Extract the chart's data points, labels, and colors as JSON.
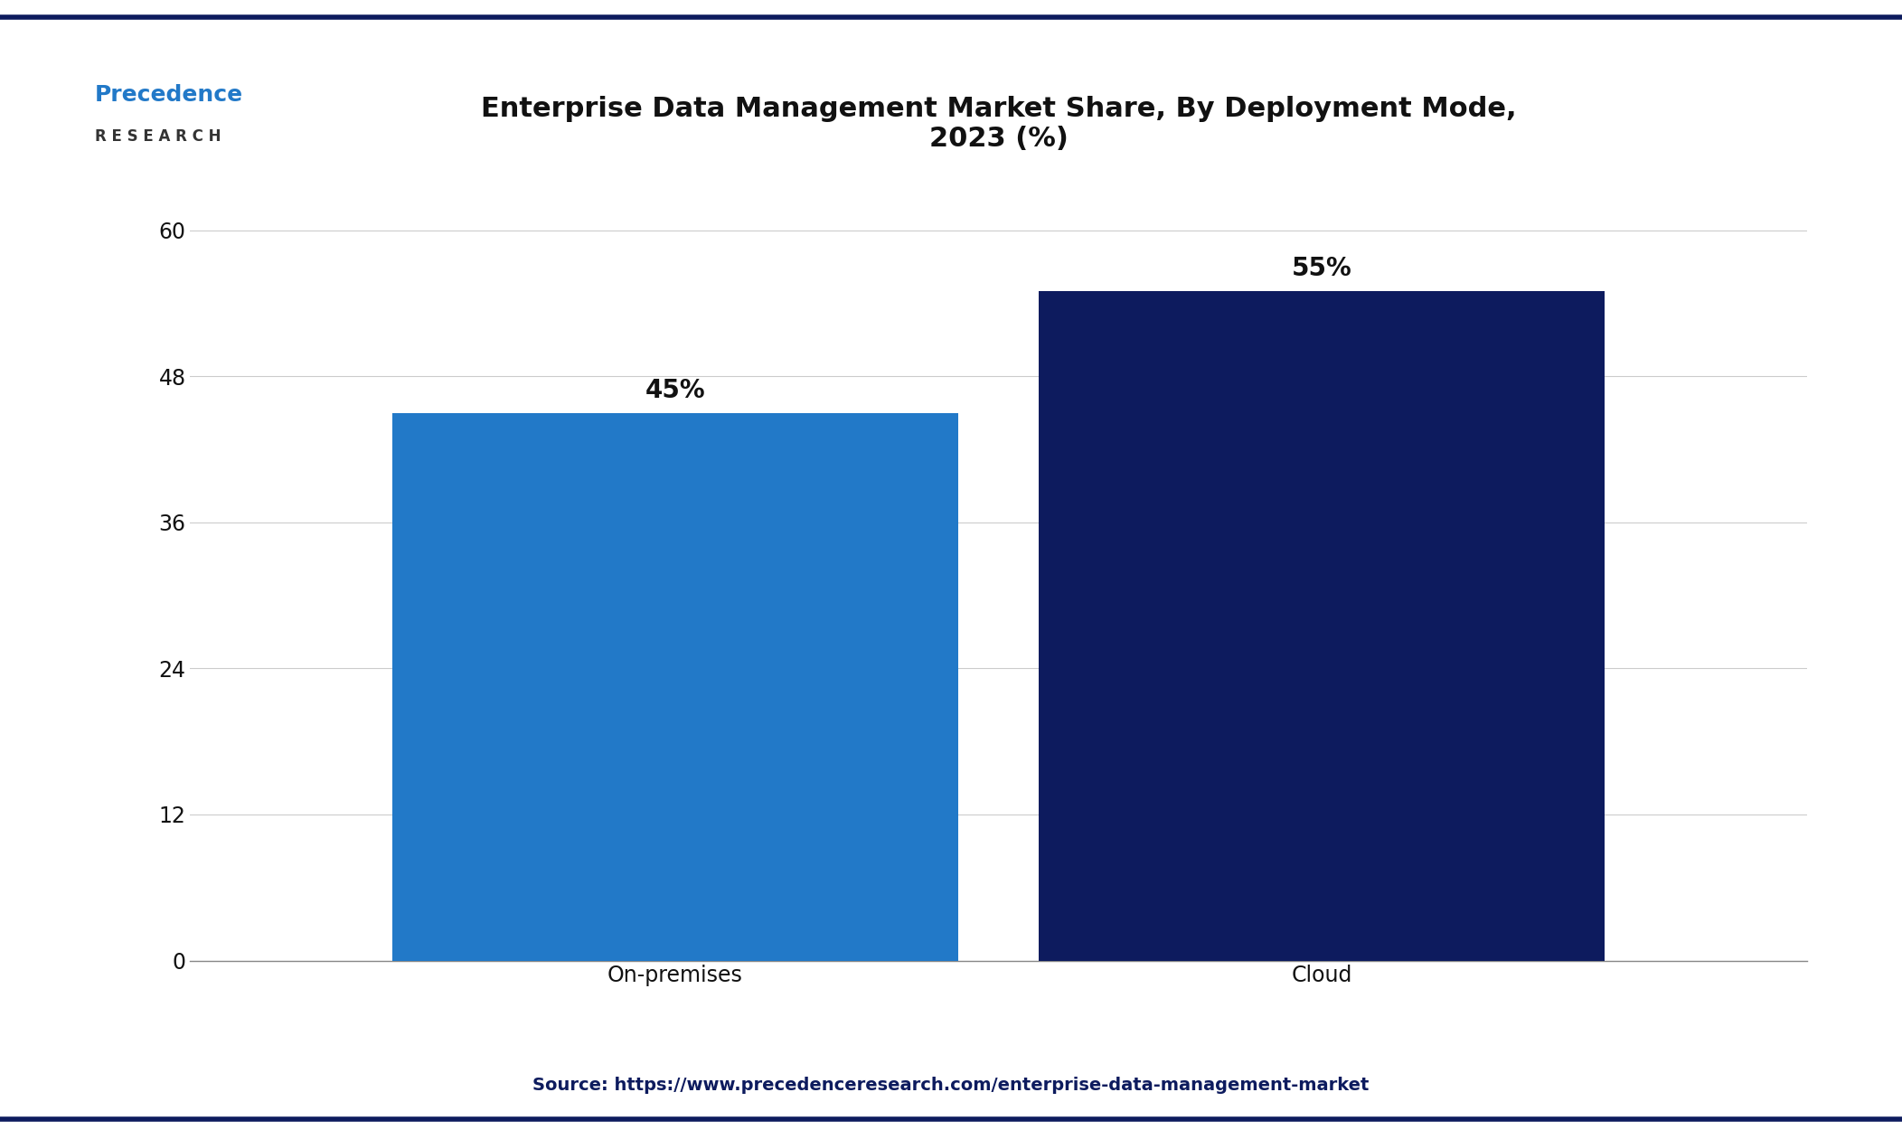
{
  "title": "Enterprise Data Management Market Share, By Deployment Mode,\n2023 (%)",
  "categories": [
    "On-premises",
    "Cloud"
  ],
  "values": [
    45,
    55
  ],
  "bar_colors": [
    "#2279C8",
    "#0D1B5E"
  ],
  "bar_labels": [
    "45%",
    "55%"
  ],
  "yticks": [
    0,
    12,
    24,
    36,
    48,
    60
  ],
  "ylim": [
    0,
    65
  ],
  "source_text": "Source: https://www.precedenceresearch.com/enterprise-data-management-market",
  "title_fontsize": 22,
  "tick_fontsize": 17,
  "label_fontsize": 20,
  "source_fontsize": 14,
  "background_color": "#FFFFFF",
  "plot_bg_color": "#FFFFFF",
  "grid_color": "#CCCCCC",
  "title_color": "#111111",
  "tick_color": "#111111",
  "source_color": "#0D1B5E",
  "bar_label_color": "#111111",
  "bar_width": 0.35,
  "top_border_color": "#0D1B5E",
  "bottom_border_color": "#0D1B5E"
}
